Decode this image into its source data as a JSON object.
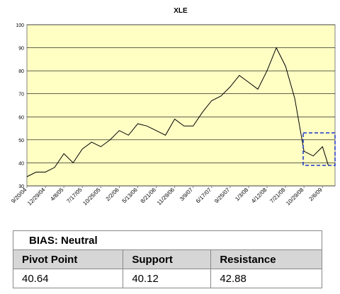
{
  "chart_data": {
    "type": "line",
    "title": "XLE",
    "x": [
      "9/20/04",
      "11/9/04",
      "12/29/04",
      "2/17/05",
      "4/8/05",
      "5/28/05",
      "7/17/05",
      "9/5/05",
      "10/25/05",
      "12/14/05",
      "2/2/06",
      "3/24/06",
      "5/13/06",
      "7/2/06",
      "8/21/06",
      "10/10/06",
      "11/29/06",
      "1/18/07",
      "3/9/07",
      "4/28/07",
      "6/17/07",
      "8/6/07",
      "9/25/07",
      "11/14/07",
      "1/3/08",
      "2/22/08",
      "4/12/08",
      "6/1/08",
      "7/21/08",
      "9/9/08",
      "10/29/08",
      "12/18/08",
      "2/6/09",
      "3/9/09"
    ],
    "series": [
      {
        "name": "XLE",
        "color": "#000000",
        "values": [
          34,
          36,
          36,
          38,
          44,
          40,
          46,
          49,
          47,
          50,
          54,
          52,
          57,
          56,
          54,
          52,
          59,
          56,
          56,
          62,
          67,
          69,
          73,
          78,
          75,
          72,
          80,
          90,
          82,
          68,
          45,
          43,
          47,
          39
        ]
      }
    ],
    "xlim": [
      "9/20/04",
      "4/15/09"
    ],
    "xticks": [
      "9/20/04",
      "12/29/04",
      "4/8/05",
      "7/17/05",
      "10/25/05",
      "2/2/06",
      "5/13/06",
      "8/21/06",
      "11/29/06",
      "3/9/07",
      "6/17/07",
      "9/25/07",
      "1/3/08",
      "4/12/08",
      "7/21/08",
      "10/29/08",
      "2/6/09"
    ],
    "ylim": [
      30,
      100
    ],
    "yticks": [
      30,
      40,
      50,
      60,
      70,
      80,
      90,
      100
    ],
    "grid": true,
    "plot_color": "#ffffc4"
  },
  "table": {
    "bias": "BIAS: Neutral",
    "headers": [
      "Pivot Point",
      "Support",
      "Resistance"
    ],
    "values": [
      "40.64",
      "40.12",
      "42.88"
    ]
  }
}
